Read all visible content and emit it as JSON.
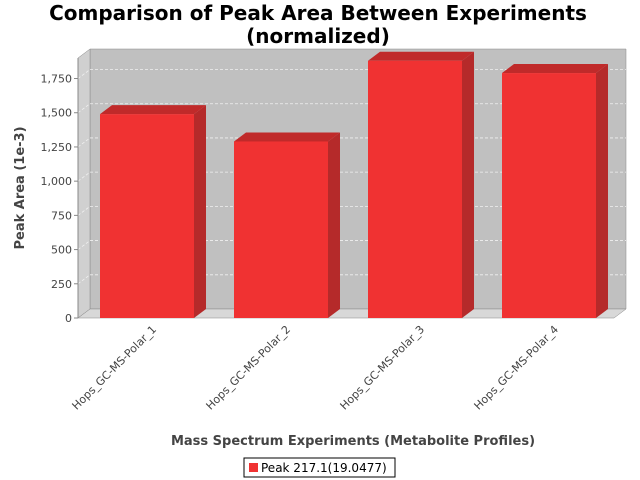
{
  "chart_data": {
    "type": "bar",
    "title": "Comparison of Peak Area Between Experiments",
    "subtitle": "(normalized)",
    "xlabel": "Mass Spectrum Experiments (Metabolite Profiles)",
    "ylabel": "Peak Area (1e-3)",
    "categories": [
      "Hops_GC-MS-Polar_1",
      "Hops_GC-MS-Polar_2",
      "Hops_GC-MS-Polar_3",
      "Hops_GC-MS-Polar_4"
    ],
    "series": [
      {
        "name": "Peak 217.1(19.0477)",
        "values": [
          1490,
          1290,
          1880,
          1790
        ]
      }
    ],
    "ylim": [
      0,
      1900
    ],
    "yticks": [
      0,
      250,
      500,
      750,
      1000,
      1250,
      1500,
      1750
    ],
    "ytick_labels": [
      "0",
      "250",
      "500",
      "750",
      "1,000",
      "1,250",
      "1,500",
      "1,750"
    ],
    "grid": true,
    "legend_position": "bottom",
    "colors": {
      "bar": "#f03232",
      "bar_side": "#b52a2a",
      "bar_top": "#c02a2a",
      "plot_bg": "#c0c0c0",
      "floor": "#d8d8d8"
    }
  }
}
